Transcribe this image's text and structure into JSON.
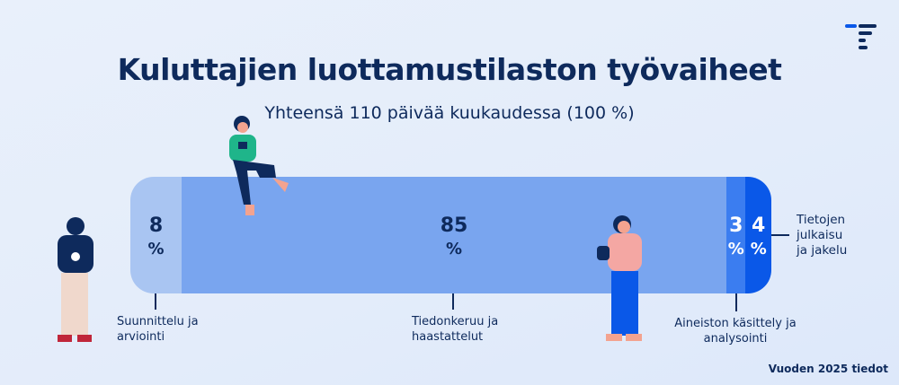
{
  "chart_data": {
    "type": "bar",
    "orientation": "horizontal-stacked",
    "title": "Kuluttajien luottamustilaston työvaiheet",
    "subtitle": "Yhteensä 110 päivää kuukaudessa (100 %)",
    "unit": "%",
    "categories": [
      "Suunnittelu ja arviointi",
      "Tiedonkeruu ja haastattelut",
      "Aineiston käsittely ja analysointi",
      "Tietojen julkaisu ja jakelu"
    ],
    "values": [
      8,
      85,
      3,
      4
    ],
    "value_labels": [
      "8",
      "85",
      "3",
      "4"
    ],
    "colors": [
      "#a9c5f2",
      "#79a5ef",
      "#3b7df0",
      "#0a58e8"
    ],
    "label_colors": [
      "#0e2a5c",
      "#0e2a5c",
      "#ffffff",
      "#ffffff"
    ],
    "note": "Vuoden 2025 tiedot"
  },
  "icons": {
    "logo": "statistics-finland-logo"
  }
}
